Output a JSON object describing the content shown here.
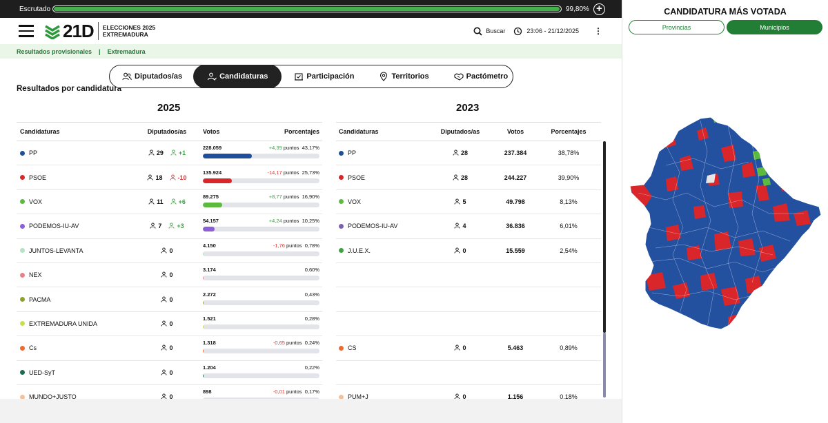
{
  "topbar": {
    "label": "Escrutado",
    "progress_pct": 99.8,
    "value": "99,80%"
  },
  "header": {
    "brand": "21D",
    "subtitle_line1": "ELECCIONES 2025",
    "subtitle_line2": "EXTREMADURA",
    "search_label": "Buscar",
    "datetime": "23:06 - 21/12/2025"
  },
  "breadcrumb": {
    "item1": "Resultados provisionales",
    "item2": "Extremadura"
  },
  "tabs": [
    {
      "label": "Diputados/as",
      "icon": "people-icon"
    },
    {
      "label": "Candidaturas",
      "icon": "candidate-icon",
      "active": true
    },
    {
      "label": "Participación",
      "icon": "ballot-icon"
    },
    {
      "label": "Territorios",
      "icon": "location-icon"
    },
    {
      "label": "Pactómetro",
      "icon": "handshake-icon"
    }
  ],
  "section_title": "Resultados por candidatura",
  "y2025": {
    "year": "2025",
    "headers": {
      "c1": "Candidaturas",
      "c2": "Diputados/as",
      "c3": "Votos",
      "c4": "Porcentajes"
    },
    "rows": [
      {
        "name": "PP",
        "color": "#1f4f9c",
        "seats": "29",
        "change": "+1",
        "change_dir": "pos",
        "votes": "228.059",
        "delta": "+4,39",
        "delta_dir": "pos",
        "pct": "43,17%",
        "pct_num": 43.17
      },
      {
        "name": "PSOE",
        "color": "#d8262b",
        "seats": "18",
        "change": "-10",
        "change_dir": "neg",
        "votes": "135.924",
        "delta": "-14,17",
        "delta_dir": "neg",
        "pct": "25,73%",
        "pct_num": 25.73
      },
      {
        "name": "VOX",
        "color": "#5cbb3e",
        "seats": "11",
        "change": "+6",
        "change_dir": "pos",
        "votes": "89.275",
        "delta": "+8,77",
        "delta_dir": "pos",
        "pct": "16,90%",
        "pct_num": 16.9
      },
      {
        "name": "PODEMOS-IU-AV",
        "color": "#8b5fd6",
        "seats": "7",
        "change": "+3",
        "change_dir": "pos",
        "votes": "54.157",
        "delta": "+4,24",
        "delta_dir": "pos",
        "pct": "10,25%",
        "pct_num": 10.25
      },
      {
        "name": "JUNTOS-LEVANTA",
        "color": "#b6e3c4",
        "seats": "0",
        "change": "",
        "change_dir": "",
        "votes": "4.150",
        "delta": "-1,76",
        "delta_dir": "neg",
        "pct": "0,78%",
        "pct_num": 0.78
      },
      {
        "name": "NEX",
        "color": "#ea7f86",
        "seats": "0",
        "change": "",
        "change_dir": "",
        "votes": "3.174",
        "delta": "",
        "delta_dir": "",
        "pct": "0,60%",
        "pct_num": 0.6
      },
      {
        "name": "PACMA",
        "color": "#94a02e",
        "seats": "0",
        "change": "",
        "change_dir": "",
        "votes": "2.272",
        "delta": "",
        "delta_dir": "",
        "pct": "0,43%",
        "pct_num": 0.43
      },
      {
        "name": "EXTREMADURA UNIDA",
        "color": "#c5e04a",
        "seats": "0",
        "change": "",
        "change_dir": "",
        "votes": "1.521",
        "delta": "",
        "delta_dir": "",
        "pct": "0,28%",
        "pct_num": 0.28
      },
      {
        "name": "Cs",
        "color": "#ee6a2e",
        "seats": "0",
        "change": "",
        "change_dir": "",
        "votes": "1.318",
        "delta": "-0,65",
        "delta_dir": "neg",
        "pct": "0,24%",
        "pct_num": 0.24
      },
      {
        "name": "UED-SyT",
        "color": "#1e6b57",
        "seats": "0",
        "change": "",
        "change_dir": "",
        "votes": "1.204",
        "delta": "",
        "delta_dir": "",
        "pct": "0,22%",
        "pct_num": 0.22
      },
      {
        "name": "MUNDO+JUSTO",
        "color": "#f0c19a",
        "seats": "0",
        "change": "",
        "change_dir": "",
        "votes": "898",
        "delta": "-0,01",
        "delta_dir": "neg",
        "pct": "0,17%",
        "pct_num": 0.17
      }
    ],
    "puntos_label": "puntos"
  },
  "y2023": {
    "year": "2023",
    "headers": {
      "c1": "Candidaturas",
      "c2": "Diputados/as",
      "c3": "Votos",
      "c4": "Porcentajes"
    },
    "rows": [
      {
        "name": "PP",
        "color": "#1f4f9c",
        "seats": "28",
        "votes": "237.384",
        "pct": "38,78%"
      },
      {
        "name": "PSOE",
        "color": "#d8262b",
        "seats": "28",
        "votes": "244.227",
        "pct": "39,90%"
      },
      {
        "name": "VOX",
        "color": "#5cbb3e",
        "seats": "5",
        "votes": "49.798",
        "pct": "8,13%"
      },
      {
        "name": "PODEMOS-IU-AV",
        "color": "#7b5fb0",
        "seats": "4",
        "votes": "36.836",
        "pct": "6,01%"
      },
      {
        "name": "J.U.E.X.",
        "color": "#3aa43f",
        "seats": "0",
        "votes": "15.559",
        "pct": "2,54%"
      },
      null,
      null,
      null,
      {
        "name": "CS",
        "color": "#ee6a2e",
        "seats": "0",
        "votes": "5.463",
        "pct": "0,89%"
      },
      null,
      {
        "name": "PUM+J",
        "color": "#f0c19a",
        "seats": "0",
        "votes": "1.156",
        "pct": "0,18%"
      }
    ]
  },
  "right_panel": {
    "title": "CANDIDATURA MÁS VOTADA",
    "toggle1": "Provincias",
    "toggle2": "Municipios",
    "map_colors": {
      "pp": "#2450a0",
      "psoe": "#d8262b",
      "vox": "#5cbb3e",
      "none": "#e6e6e6"
    }
  }
}
